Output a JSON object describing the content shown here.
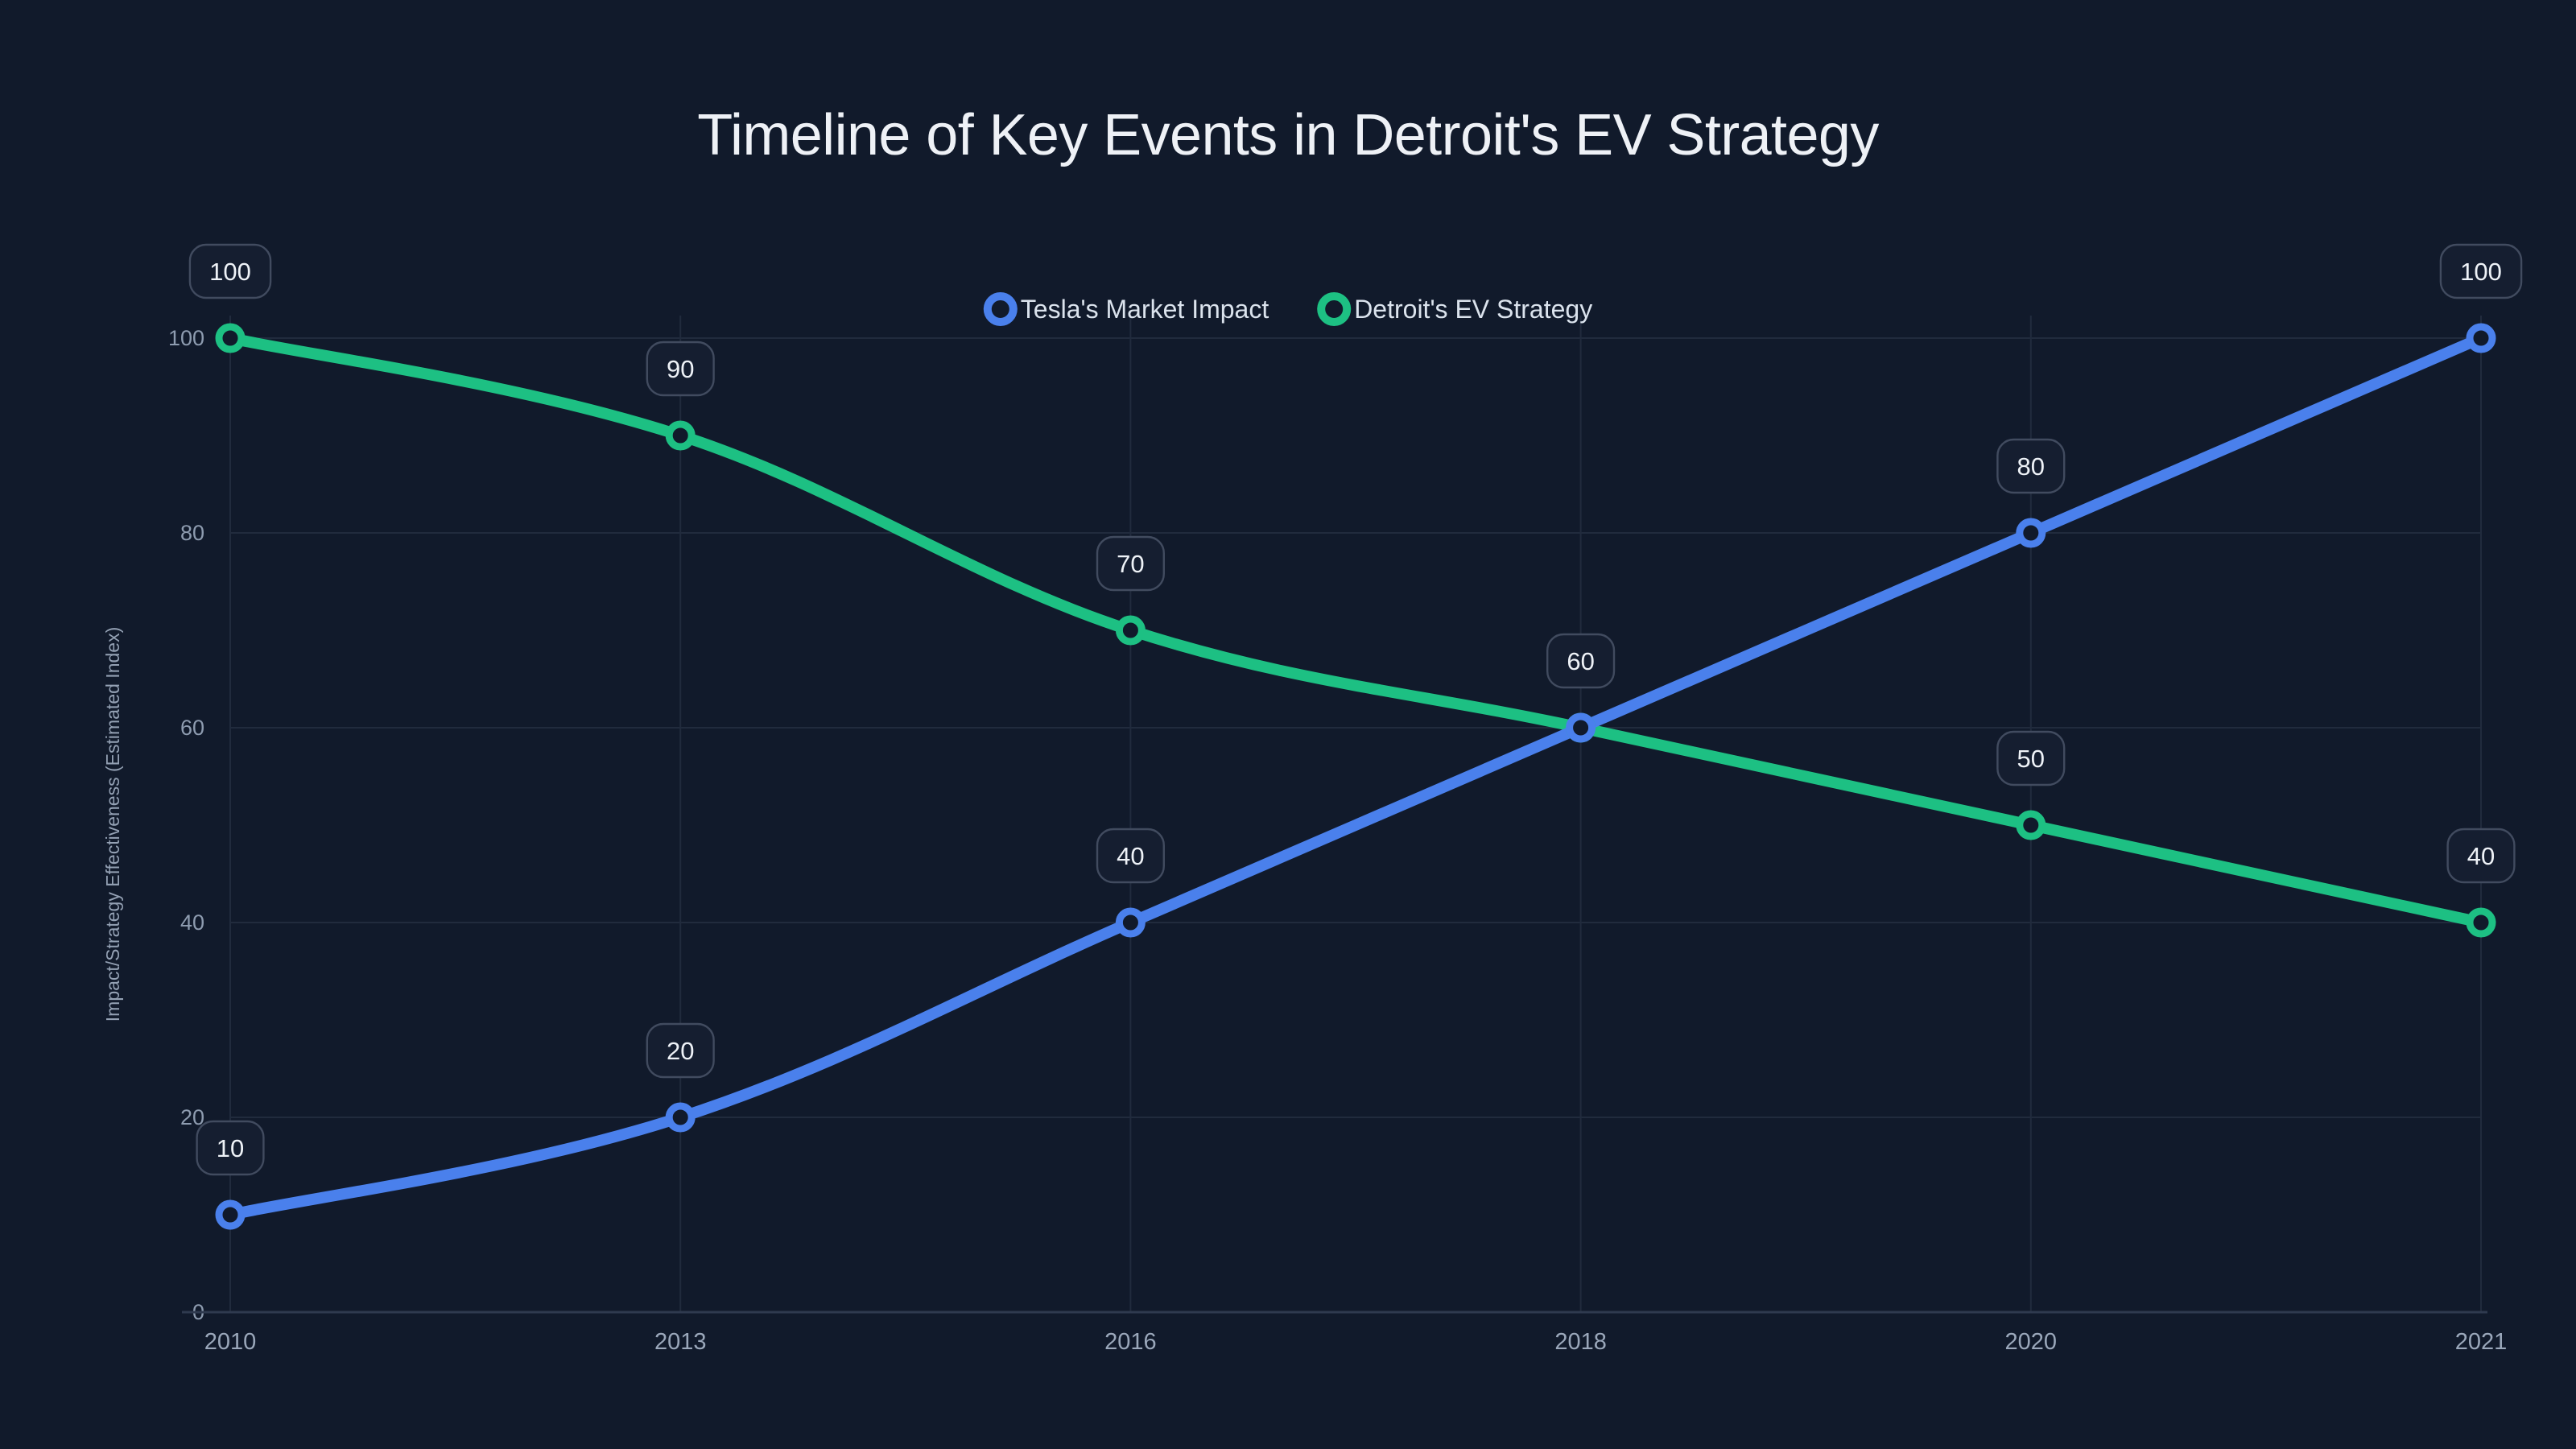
{
  "theme": {
    "background": "#111a2b",
    "title_color": "#eef1f6",
    "tick_color": "#8e9cb0",
    "axis_title_color": "#94a1b4",
    "grid_color": "#212b3d",
    "axis_line_color": "#2f3a4f",
    "label_box_bg": "#151e30",
    "label_box_border": "#414b5f",
    "label_text_color": "#eef2f7",
    "legend_text_color": "#dbe3ed",
    "series_blue": "#4a80ec",
    "series_green": "#1dc083"
  },
  "chart_data": {
    "type": "line",
    "title": "Timeline of Key Events in Detroit's EV Strategy",
    "xlabel": "",
    "ylabel": "Impact/Strategy Effectiveness (Estimated Index)",
    "categories": [
      "2010",
      "2013",
      "2016",
      "2018",
      "2020",
      "2021"
    ],
    "series": [
      {
        "name": "Tesla's Market Impact",
        "color": "#4a80ec",
        "values": [
          10,
          20,
          40,
          60,
          80,
          100
        ],
        "point_labels": [
          "10",
          "20",
          "40",
          "60",
          "80",
          "100"
        ]
      },
      {
        "name": "Detroit's EV Strategy",
        "color": "#1dc083",
        "values": [
          100,
          90,
          70,
          60,
          50,
          40
        ],
        "point_labels": [
          "100",
          "90",
          "70",
          "60",
          "50",
          "40"
        ]
      }
    ],
    "yticks": [
      0,
      20,
      40,
      60,
      80,
      100
    ],
    "ylim": [
      0,
      100
    ],
    "grid": true,
    "legend_position": "top",
    "line_style": "smooth",
    "marker_style": "open-circle",
    "point_labels_visible": true
  }
}
